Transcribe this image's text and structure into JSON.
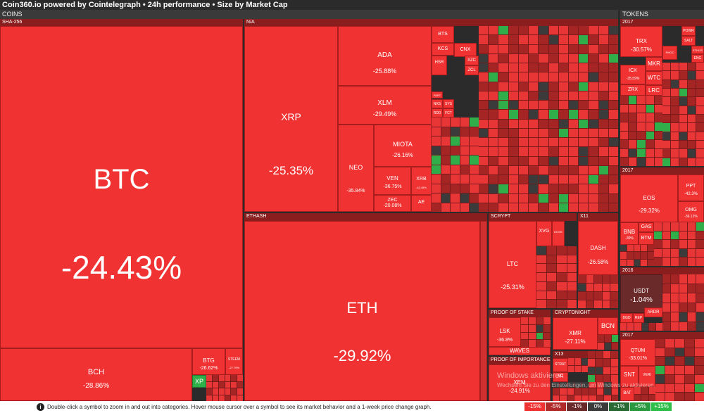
{
  "header": {
    "title": "Coin360.io powered by Cointelegraph • 24h performance • Size by Market Cap"
  },
  "sections": {
    "coins": "COINS",
    "tokens": "TOKENS"
  },
  "groups": {
    "sha256": "SHA-256",
    "na": "N/A",
    "ethash": "ETHASH",
    "scrypt": "SCRYPT",
    "x11": "X11",
    "proof_of_stake": "PROOF OF STAKE",
    "cryptonight": "CRYPTONIGHT",
    "proof_of_importance": "PROOF OF IMPORTANCE",
    "x13": "X13",
    "t2017a": "2017",
    "t2017b": "2017",
    "t2016": "2016",
    "t2017c": "2017"
  },
  "tiles": {
    "btc": {
      "sym": "BTC",
      "pct": "-24.43%"
    },
    "bch": {
      "sym": "BCH",
      "pct": "-28.86%"
    },
    "btg": {
      "sym": "BTG",
      "pct": "-26.62%"
    },
    "steem": {
      "sym": "STEEM",
      "pct": "-27.79%"
    },
    "xp": {
      "sym": "XP"
    },
    "xrp": {
      "sym": "XRP",
      "pct": "-25.35%"
    },
    "ada": {
      "sym": "ADA",
      "pct": "-25.88%"
    },
    "xlm": {
      "sym": "XLM",
      "pct": "-29.49%"
    },
    "neo": {
      "sym": "NEO",
      "pct": "-35.84%"
    },
    "miota": {
      "sym": "MIOTA",
      "pct": "-26.16%"
    },
    "ven": {
      "sym": "VEN",
      "pct": "-36.75%"
    },
    "xrb": {
      "sym": "XRB",
      "pct": "-42.45%"
    },
    "zec": {
      "sym": "ZEC",
      "pct": "-20.08%"
    },
    "ae": {
      "sym": "AE"
    },
    "bts": {
      "sym": "BTS"
    },
    "kcs": {
      "sym": "KCS"
    },
    "cnx": {
      "sym": "CNX"
    },
    "hsr": {
      "sym": "HSR"
    },
    "xzc": {
      "sym": "XZC"
    },
    "zcl": {
      "sym": "ZCL"
    },
    "nxs": {
      "sym": "NXS"
    },
    "sys": {
      "sym": "SYS"
    },
    "rdd": {
      "sym": "RDD"
    },
    "fct": {
      "sym": "FCT"
    },
    "part": {
      "sym": "PART"
    },
    "eth": {
      "sym": "ETH",
      "pct": "-29.92%"
    },
    "ltc": {
      "sym": "LTC",
      "pct": "-25.31%"
    },
    "xvg": {
      "sym": "XVG"
    },
    "doge": {
      "sym": "DOGE"
    },
    "dash": {
      "sym": "DASH",
      "pct": "-26.58%"
    },
    "lsk": {
      "sym": "LSK",
      "pct": "-36.8%"
    },
    "waves": {
      "sym": "WAVES"
    },
    "xmr": {
      "sym": "XMR",
      "pct": "-27.11%"
    },
    "bcn": {
      "sym": "BCN"
    },
    "xem": {
      "sym": "XEM",
      "pct": "-24.91%"
    },
    "strat": {
      "sym": "STRAT"
    },
    "sc": {
      "sym": "SC"
    },
    "trx": {
      "sym": "TRX",
      "pct": "-30.57%"
    },
    "powr": {
      "sym": "POWR"
    },
    "salt": {
      "sym": "SALT"
    },
    "ethos": {
      "sym": "ETHOS"
    },
    "eng": {
      "sym": "ENG"
    },
    "mkr": {
      "sym": "MKR"
    },
    "icx": {
      "sym": "ICX",
      "pct": "-35.59%"
    },
    "wtc": {
      "sym": "WTC"
    },
    "zrx": {
      "sym": "ZRX"
    },
    "lrc": {
      "sym": "LRC"
    },
    "rhoc": {
      "sym": "RHOC"
    },
    "eos": {
      "sym": "EOS",
      "pct": "-29.32%"
    },
    "ppt": {
      "sym": "PPT",
      "pct": "-42.3%"
    },
    "omg": {
      "sym": "OMG",
      "pct": "-36.12%"
    },
    "bnb": {
      "sym": "BNB",
      "pct": "-30%"
    },
    "gas": {
      "sym": "GAS"
    },
    "btm": {
      "sym": "BTM"
    },
    "usdt": {
      "sym": "USDT",
      "pct": "-1.04%"
    },
    "dgd": {
      "sym": "DGD"
    },
    "rep": {
      "sym": "REP"
    },
    "ardr": {
      "sym": "ARDR"
    },
    "qtum": {
      "sym": "QTUM",
      "pct": "-33.01%"
    },
    "snt": {
      "sym": "SNT"
    },
    "veri": {
      "sym": "VERI"
    },
    "bat": {
      "sym": "BAT"
    }
  },
  "footer": {
    "info": "Double-click a symbol to zoom in and out into categories. Hover mouse cursor over a symbol to see its market behavior and a 1-week price change graph.",
    "legend": [
      "-15%",
      "-5%",
      "-1%",
      "0%",
      "+1%",
      "+5%",
      "+15%"
    ],
    "legend_colors": [
      "#f03232",
      "#b02a2a",
      "#6b2a2a",
      "#3b3b3b",
      "#2a6b35",
      "#2a9a40",
      "#2fbe4a"
    ]
  },
  "watermark": {
    "line1": "Windows aktivieren",
    "line2": "Wechseln Sie zu den Einstellungen, um Windows zu aktivieren."
  }
}
